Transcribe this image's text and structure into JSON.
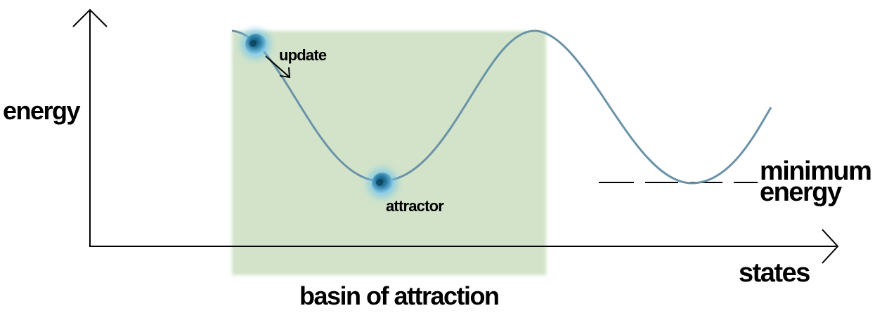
{
  "labels": {
    "y_axis": "energy",
    "x_axis": "states",
    "update": "update",
    "attractor": "attractor",
    "minimum_line1": "minimum",
    "minimum_line2": "energy",
    "basin": "basin of attraction"
  },
  "colors": {
    "curve": "#6a93a8",
    "basin_fill": "#d2e3c9",
    "ball": "#2e7fa6",
    "ball_glow": "#6ec3ea",
    "axis": "#000000",
    "dash": "#000000"
  }
}
